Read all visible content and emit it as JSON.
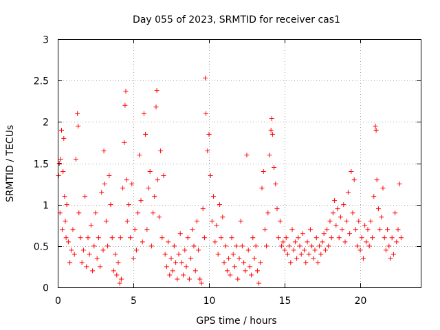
{
  "chart_data": {
    "type": "scatter",
    "title": "Day 055 of 2023, SRMTID for receiver cas1",
    "xlabel": "GPS time / hours",
    "ylabel": "SRMTID / TECUs",
    "xlim": [
      0,
      24
    ],
    "ylim": [
      0,
      3
    ],
    "xticks": [
      0,
      5,
      10,
      15,
      20
    ],
    "xtick_labels": [
      "0",
      "5",
      "10",
      "15",
      "20"
    ],
    "yticks": [
      0,
      0.5,
      1,
      1.5,
      2,
      2.5,
      3
    ],
    "ytick_labels": [
      "0",
      "0.5",
      "1",
      "1.5",
      "2",
      "2.5",
      "3"
    ],
    "grid": true,
    "marker": "+",
    "color": "#ff0000",
    "series": [
      {
        "name": "SRMTID",
        "x": [
          0.05,
          0.1,
          0.15,
          0.2,
          0.25,
          0.3,
          0.35,
          0.4,
          0.45,
          0.5,
          0.55,
          0.6,
          0.7,
          0.8,
          0.9,
          1.0,
          1.1,
          1.2,
          1.3,
          1.35,
          1.4,
          1.5,
          1.6,
          1.7,
          1.8,
          1.9,
          2.0,
          2.1,
          2.2,
          2.3,
          2.4,
          2.5,
          2.6,
          2.7,
          2.8,
          2.9,
          3.0,
          3.05,
          3.1,
          3.2,
          3.3,
          3.4,
          3.5,
          3.6,
          3.7,
          3.8,
          3.9,
          4.0,
          4.1,
          4.15,
          4.2,
          4.3,
          4.4,
          4.45,
          4.5,
          4.55,
          4.6,
          4.7,
          4.8,
          4.9,
          5.0,
          5.1,
          5.2,
          5.3,
          5.4,
          5.5,
          5.6,
          5.7,
          5.8,
          5.9,
          6.0,
          6.1,
          6.2,
          6.3,
          6.4,
          6.5,
          6.55,
          6.6,
          6.7,
          6.8,
          6.9,
          7.0,
          7.1,
          7.2,
          7.3,
          7.4,
          7.5,
          7.6,
          7.7,
          7.8,
          7.9,
          8.0,
          8.1,
          8.2,
          8.3,
          8.4,
          8.5,
          8.6,
          8.7,
          8.8,
          8.9,
          9.0,
          9.1,
          9.2,
          9.3,
          9.4,
          9.5,
          9.6,
          9.7,
          9.75,
          9.8,
          9.9,
          10.0,
          10.1,
          10.2,
          10.3,
          10.4,
          10.5,
          10.6,
          10.7,
          10.8,
          10.9,
          11.0,
          11.1,
          11.2,
          11.3,
          11.4,
          11.5,
          11.6,
          11.7,
          11.8,
          11.9,
          12.0,
          12.1,
          12.2,
          12.3,
          12.4,
          12.5,
          12.6,
          12.7,
          12.8,
          12.9,
          13.0,
          13.1,
          13.2,
          13.3,
          13.4,
          13.5,
          13.6,
          13.7,
          13.8,
          13.9,
          14.0,
          14.1,
          14.15,
          14.2,
          14.3,
          14.4,
          14.5,
          14.6,
          14.7,
          14.8,
          14.9,
          15.0,
          15.1,
          15.2,
          15.3,
          15.4,
          15.5,
          15.6,
          15.7,
          15.8,
          15.9,
          16.0,
          16.1,
          16.2,
          16.3,
          16.4,
          16.5,
          16.6,
          16.7,
          16.8,
          16.9,
          17.0,
          17.1,
          17.2,
          17.3,
          17.4,
          17.5,
          17.6,
          17.7,
          17.8,
          17.9,
          18.0,
          18.1,
          18.2,
          18.3,
          18.4,
          18.5,
          18.6,
          18.7,
          18.8,
          18.9,
          19.0,
          19.1,
          19.2,
          19.3,
          19.4,
          19.5,
          19.6,
          19.7,
          19.8,
          19.9,
          20.0,
          20.1,
          20.2,
          20.3,
          20.4,
          20.5,
          20.6,
          20.7,
          20.8,
          20.9,
          21.0,
          21.05,
          21.1,
          21.2,
          21.3,
          21.4,
          21.5,
          21.6,
          21.7,
          21.8,
          21.9,
          22.0,
          22.1,
          22.2,
          22.3,
          22.4,
          22.5,
          22.6,
          22.7
        ],
        "y": [
          1.35,
          1.5,
          0.9,
          1.55,
          1.9,
          0.7,
          1.4,
          1.8,
          1.1,
          0.8,
          0.6,
          1.0,
          0.55,
          0.3,
          0.45,
          0.7,
          0.4,
          1.55,
          2.1,
          1.95,
          0.9,
          0.6,
          0.3,
          0.45,
          1.1,
          0.25,
          0.6,
          0.4,
          0.75,
          0.2,
          0.5,
          0.9,
          0.35,
          0.6,
          0.25,
          1.15,
          0.45,
          1.65,
          1.25,
          0.8,
          0.5,
          1.35,
          1.0,
          0.6,
          0.2,
          0.4,
          0.15,
          0.3,
          0.05,
          0.6,
          0.1,
          1.2,
          1.75,
          2.2,
          2.37,
          1.3,
          0.8,
          1.0,
          0.6,
          1.25,
          0.35,
          0.7,
          0.45,
          0.9,
          1.6,
          1.05,
          0.55,
          2.1,
          1.85,
          0.7,
          1.2,
          1.4,
          0.5,
          0.9,
          1.1,
          2.18,
          2.38,
          1.3,
          0.85,
          1.65,
          0.6,
          1.35,
          0.4,
          0.25,
          0.55,
          0.15,
          0.35,
          0.2,
          0.5,
          0.3,
          0.1,
          0.4,
          0.65,
          0.3,
          0.15,
          0.45,
          0.25,
          0.6,
          0.1,
          0.35,
          0.7,
          0.5,
          0.2,
          0.8,
          0.45,
          0.1,
          0.05,
          0.95,
          0.6,
          2.53,
          2.1,
          1.65,
          1.85,
          1.35,
          0.8,
          1.1,
          0.55,
          0.75,
          0.4,
          1.0,
          0.6,
          0.85,
          0.3,
          0.5,
          0.2,
          0.35,
          0.15,
          0.6,
          0.4,
          0.25,
          0.5,
          0.1,
          0.35,
          0.8,
          0.5,
          0.3,
          0.2,
          1.6,
          0.45,
          0.25,
          0.15,
          0.6,
          0.35,
          0.5,
          0.2,
          0.05,
          0.3,
          1.2,
          1.4,
          0.7,
          0.5,
          0.9,
          1.6,
          1.9,
          2.04,
          1.85,
          1.45,
          1.25,
          0.95,
          0.6,
          0.8,
          0.5,
          0.55,
          0.45,
          0.6,
          0.4,
          0.5,
          0.3,
          0.7,
          0.45,
          0.55,
          0.35,
          0.6,
          0.5,
          0.4,
          0.65,
          0.45,
          0.3,
          0.55,
          0.4,
          0.7,
          0.5,
          0.35,
          0.45,
          0.6,
          0.3,
          0.5,
          0.4,
          0.55,
          0.65,
          0.45,
          0.7,
          0.5,
          0.8,
          0.6,
          0.9,
          1.05,
          0.75,
          0.95,
          0.6,
          0.85,
          0.7,
          1.0,
          0.55,
          0.8,
          1.15,
          0.65,
          1.4,
          0.9,
          1.3,
          0.7,
          0.5,
          0.8,
          0.45,
          0.6,
          0.35,
          0.75,
          0.55,
          0.7,
          0.5,
          0.8,
          0.6,
          1.1,
          1.95,
          1.9,
          1.3,
          0.95,
          0.7,
          0.85,
          1.2,
          0.6,
          0.45,
          0.7,
          0.5,
          0.35,
          0.6,
          0.4,
          0.9,
          0.55,
          0.7,
          1.25,
          0.6
        ]
      }
    ]
  }
}
